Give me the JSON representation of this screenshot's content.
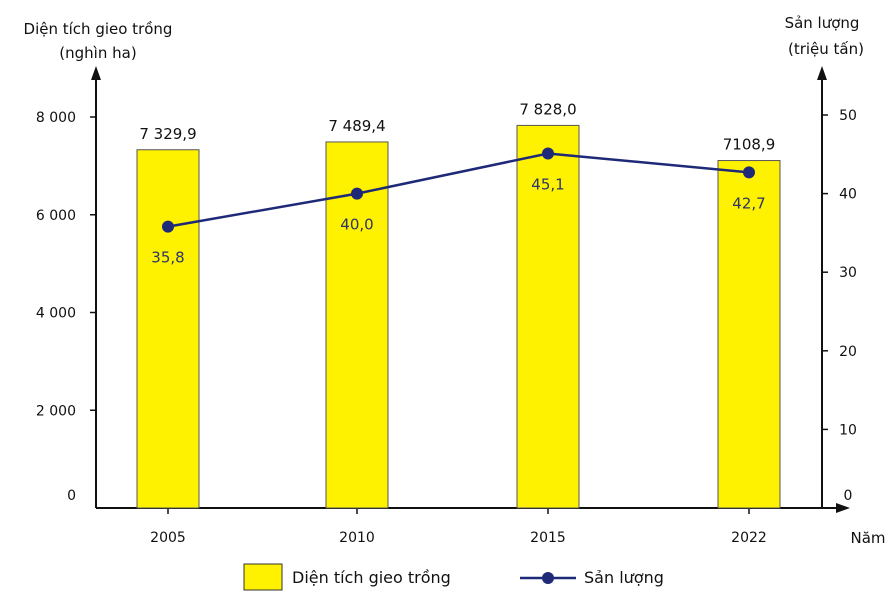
{
  "chart_data": {
    "type": "bar+line",
    "categories": [
      "2005",
      "2010",
      "2015",
      "2022"
    ],
    "x_axis_label": "Năm",
    "left_axis": {
      "title_line1": "Diện tích gieo trồng",
      "title_line2": "(nghìn ha)",
      "ticks": [
        "0",
        "2 000",
        "4 000",
        "6 000",
        "8 000"
      ],
      "tick_values": [
        0,
        2000,
        4000,
        6000,
        8000
      ],
      "ylim": [
        0,
        8000
      ]
    },
    "right_axis": {
      "title_line1": "Sản lượng",
      "title_line2": "(triệu tấn)",
      "ticks": [
        "0",
        "10",
        "20",
        "30",
        "40",
        "50"
      ],
      "tick_values": [
        0,
        10,
        20,
        30,
        40,
        50
      ],
      "ylim": [
        0,
        50
      ]
    },
    "series": [
      {
        "name": "Diện tích gieo trồng",
        "type": "bar",
        "axis": "left",
        "values": [
          7329.9,
          7489.4,
          7828.0,
          7108.9
        ],
        "labels": [
          "7 329,9",
          "7 489,4",
          "7 828,0",
          "7108,9"
        ],
        "color": "#fff200"
      },
      {
        "name": "Sản lượng",
        "type": "line",
        "axis": "right",
        "values": [
          35.8,
          40.0,
          45.1,
          42.7
        ],
        "labels": [
          "35,8",
          "40,0",
          "45,1",
          "42,7"
        ],
        "color": "#1e2a78"
      }
    ],
    "legend": {
      "position": "bottom",
      "items": [
        "Diện tích gieo trồng",
        "Sản lượng"
      ]
    },
    "grid": false
  }
}
